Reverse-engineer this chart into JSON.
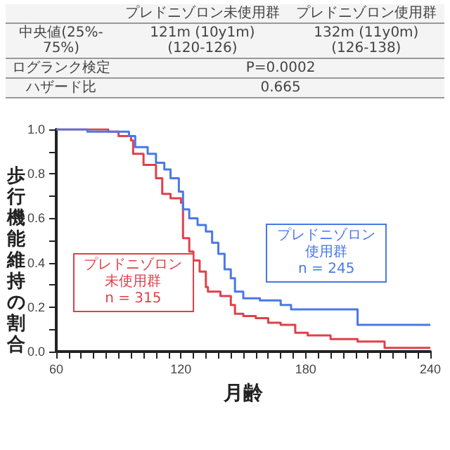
{
  "chart_data": {
    "type": "step",
    "xlabel": "月齢",
    "ylabel": "歩行機能維持の割合",
    "xlim": [
      60,
      240
    ],
    "xticks": [
      60,
      {
        "value": 66,
        "label": null
      },
      {
        "value": 72,
        "label": null
      },
      {
        "value": 78,
        "label": null
      },
      {
        "value": 84,
        "label": null
      },
      {
        "value": 90,
        "label": null
      },
      {
        "value": 96,
        "label": null
      },
      {
        "value": 102,
        "label": null
      },
      {
        "value": 108,
        "label": null
      },
      {
        "value": 114,
        "label": null
      },
      120,
      {
        "value": 126,
        "label": null
      },
      {
        "value": 132,
        "label": null
      },
      {
        "value": 138,
        "label": null
      },
      {
        "value": 144,
        "label": null
      },
      {
        "value": 150,
        "label": null
      },
      {
        "value": 156,
        "label": null
      },
      {
        "value": 162,
        "label": null
      },
      {
        "value": 168,
        "label": null
      },
      {
        "value": 174,
        "label": null
      },
      180,
      {
        "value": 186,
        "label": null
      },
      {
        "value": 192,
        "label": null
      },
      {
        "value": 198,
        "label": null
      },
      {
        "value": 204,
        "label": null
      },
      {
        "value": 210,
        "label": null
      },
      {
        "value": 216,
        "label": null
      },
      {
        "value": 222,
        "label": null
      },
      {
        "value": 228,
        "label": null
      },
      {
        "value": 234,
        "label": null
      },
      240
    ],
    "ylim": [
      0,
      1
    ],
    "yticks": [
      {
        "value": 0,
        "label": "0.0"
      },
      {
        "value": 0.1,
        "label": null
      },
      0.2,
      {
        "value": 0.3,
        "label": null
      },
      0.4,
      {
        "value": 0.5,
        "label": null
      },
      0.6,
      {
        "value": 0.7,
        "label": null
      },
      0.8,
      {
        "value": 0.9,
        "label": null
      },
      {
        "value": 1,
        "label": "1.0"
      }
    ],
    "grid": false,
    "legend": false,
    "series": [
      {
        "name": "プレドニゾロン未使用群",
        "color": "#e0404a",
        "x": [
          60,
          85,
          90,
          96,
          97,
          102,
          108,
          111,
          115,
          120,
          121,
          124,
          126,
          129,
          132,
          133,
          139,
          144,
          146,
          150,
          156,
          162,
          168,
          175,
          181,
          192,
          205,
          218,
          240
        ],
        "values": [
          1.0,
          0.99,
          0.97,
          0.95,
          0.89,
          0.84,
          0.78,
          0.71,
          0.69,
          0.67,
          0.51,
          0.45,
          0.41,
          0.36,
          0.29,
          0.27,
          0.25,
          0.21,
          0.17,
          0.16,
          0.15,
          0.13,
          0.12,
          0.085,
          0.073,
          0.056,
          0.045,
          0.017,
          0.017
        ]
      },
      {
        "name": "プレドニゾロン使用群",
        "color": "#4a78e8",
        "x": [
          60,
          75,
          95,
          98,
          104,
          108,
          112,
          115,
          119,
          121,
          124,
          128,
          132,
          135,
          138,
          141,
          144,
          146,
          150,
          158,
          168,
          173,
          203,
          205,
          240
        ],
        "values": [
          1.0,
          0.99,
          0.97,
          0.92,
          0.89,
          0.85,
          0.82,
          0.78,
          0.72,
          0.64,
          0.6,
          0.57,
          0.54,
          0.49,
          0.44,
          0.37,
          0.33,
          0.27,
          0.24,
          0.23,
          0.21,
          0.19,
          0.19,
          0.12,
          0.12
        ]
      }
    ],
    "annotations": [
      "プレドニゾロン未使用群",
      "プレドニゾロン使用群",
      "中央値(25%-\n75%)",
      "121m (10y1m)\n(120-126)",
      "132m (11y0m)\n(126-138)",
      "ログランク検定",
      "P=0.0002",
      "ハザード比",
      "0.665",
      "n = 315",
      "n = 245"
    ]
  }
}
